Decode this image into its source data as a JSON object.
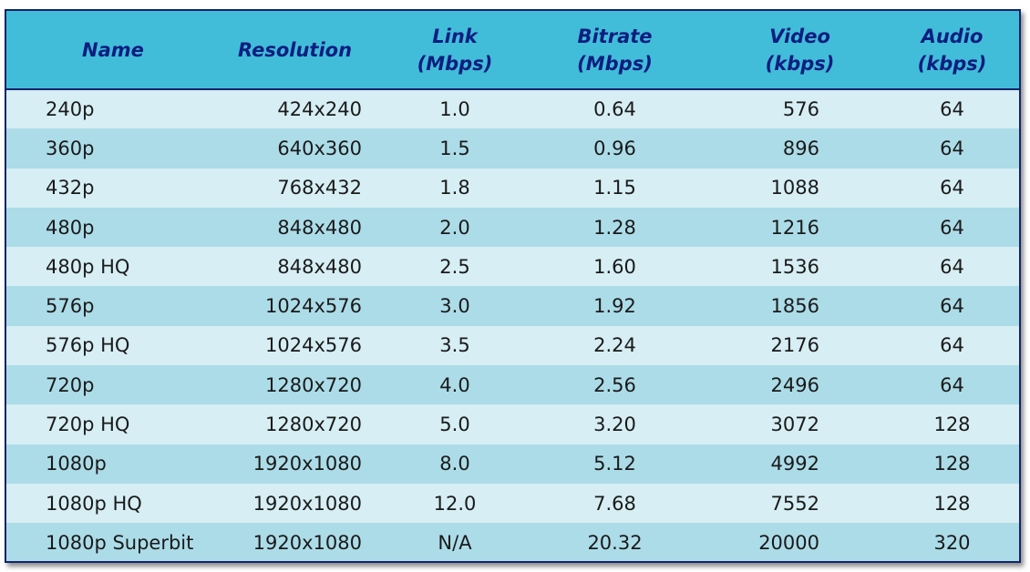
{
  "table": {
    "headers": {
      "name": "Name",
      "resolution": "Resolution",
      "link_line1": "Link",
      "link_line2": "(Mbps)",
      "bitrate_line1": "Bitrate",
      "bitrate_line2": "(Mbps)",
      "video_line1": "Video",
      "video_line2": "(kbps)",
      "audio_line1": "Audio",
      "audio_line2": "(kbps)"
    },
    "rows": [
      {
        "name": "240p",
        "resolution": "424x240",
        "link": "1.0",
        "bitrate": "0.64",
        "video": "576",
        "audio": "64"
      },
      {
        "name": "360p",
        "resolution": "640x360",
        "link": "1.5",
        "bitrate": "0.96",
        "video": "896",
        "audio": "64"
      },
      {
        "name": "432p",
        "resolution": "768x432",
        "link": "1.8",
        "bitrate": "1.15",
        "video": "1088",
        "audio": "64"
      },
      {
        "name": "480p",
        "resolution": "848x480",
        "link": "2.0",
        "bitrate": "1.28",
        "video": "1216",
        "audio": "64"
      },
      {
        "name": "480p HQ",
        "resolution": "848x480",
        "link": "2.5",
        "bitrate": "1.60",
        "video": "1536",
        "audio": "64"
      },
      {
        "name": "576p",
        "resolution": "1024x576",
        "link": "3.0",
        "bitrate": "1.92",
        "video": "1856",
        "audio": "64"
      },
      {
        "name": "576p HQ",
        "resolution": "1024x576",
        "link": "3.5",
        "bitrate": "2.24",
        "video": "2176",
        "audio": "64"
      },
      {
        "name": "720p",
        "resolution": "1280x720",
        "link": "4.0",
        "bitrate": "2.56",
        "video": "2496",
        "audio": "64"
      },
      {
        "name": "720p HQ",
        "resolution": "1280x720",
        "link": "5.0",
        "bitrate": "3.20",
        "video": "3072",
        "audio": "128"
      },
      {
        "name": "1080p",
        "resolution": "1920x1080",
        "link": "8.0",
        "bitrate": "5.12",
        "video": "4992",
        "audio": "128"
      },
      {
        "name": "1080p HQ",
        "resolution": "1920x1080",
        "link": "12.0",
        "bitrate": "7.68",
        "video": "7552",
        "audio": "128"
      },
      {
        "name": "1080p Superbit",
        "resolution": "1920x1080",
        "link": "N/A",
        "bitrate": "20.32",
        "video": "20000",
        "audio": "320"
      }
    ]
  },
  "colors": {
    "header_bg": "#42bdd9",
    "header_text": "#0d1e80",
    "row_light": "#d6eef4",
    "row_dark": "#acdce8",
    "border": "#12246b"
  }
}
